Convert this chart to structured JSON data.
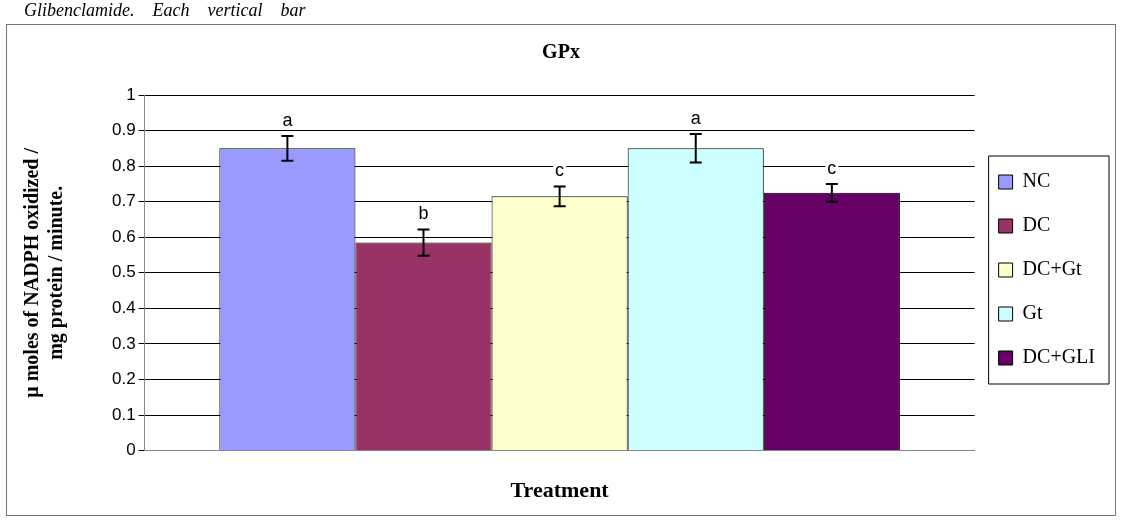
{
  "chart_data": {
    "type": "bar",
    "title": "GPx",
    "xlabel": "Treatment",
    "ylabel": "μ moles of NADPH oxidized /\nmg protein / minute.",
    "categories": [
      null
    ],
    "series": [
      {
        "name": "NC",
        "color": "#9999ff",
        "values": [
          0.85
        ],
        "errors": [
          0.035
        ]
      },
      {
        "name": "DC",
        "color": "#993366",
        "values": [
          0.585
        ],
        "errors": [
          0.037
        ]
      },
      {
        "name": "DC+Gt",
        "color": "#ffffcc",
        "values": [
          0.715
        ],
        "errors": [
          0.028
        ]
      },
      {
        "name": "Gt",
        "color": "#ccffff",
        "values": [
          0.85
        ],
        "errors": [
          0.04
        ]
      },
      {
        "name": "DC+GLI",
        "color": "#660066",
        "values": [
          0.725
        ],
        "errors": [
          0.025
        ]
      }
    ],
    "ylim": [
      0,
      1
    ],
    "yticks": [
      0,
      0.1,
      0.2,
      0.3,
      0.4,
      0.5,
      0.6,
      0.7,
      0.8,
      0.9,
      1
    ],
    "grid": "y",
    "legend": "right",
    "annotations": [
      "Glibenclamide.    Each    vertical    bar",
      "a",
      "b",
      "c",
      "a",
      "c"
    ]
  }
}
